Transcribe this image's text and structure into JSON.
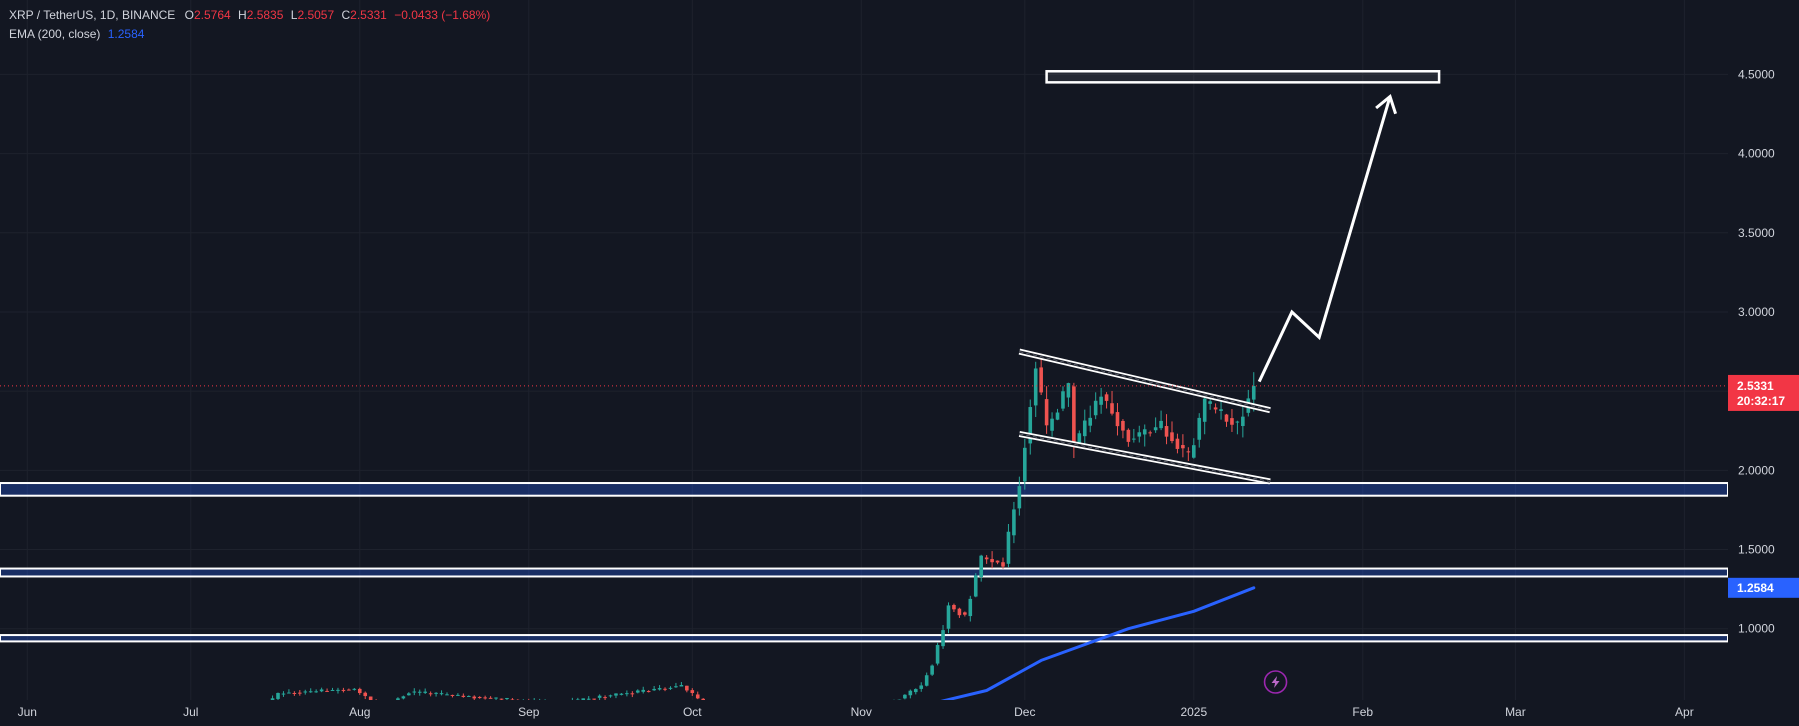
{
  "legend": {
    "symbol": "XRP / TetherUS, 1D, BINANCE",
    "o_label": "O",
    "o": "2.5764",
    "h_label": "H",
    "h": "2.5835",
    "l_label": "L",
    "l": "2.5057",
    "c_label": "C",
    "c": "2.5331",
    "change": "−0.0433 (−1.68%)",
    "ema_label": "EMA (200, close)",
    "ema_value": "1.2584"
  },
  "colors": {
    "background": "#131722",
    "grid": "#1e222d",
    "up": "#26a69a",
    "down": "#ef5350",
    "ema": "#2962ff",
    "price_tag": "#f23645",
    "drawing": "#ffffff"
  },
  "price_tag": {
    "value": "2.5331",
    "countdown": "20:32:17"
  },
  "ema_tag": {
    "value": "1.2584"
  },
  "icons": {
    "indicator": "lightning-icon"
  },
  "chart_data": {
    "type": "candlestick",
    "x_ticks": [
      {
        "date": "2024-06-01",
        "label": "Jun"
      },
      {
        "date": "2024-07-01",
        "label": "Jul"
      },
      {
        "date": "2024-08-01",
        "label": "Aug"
      },
      {
        "date": "2024-09-01",
        "label": "Sep"
      },
      {
        "date": "2024-10-01",
        "label": "Oct"
      },
      {
        "date": "2024-11-01",
        "label": "Nov"
      },
      {
        "date": "2024-12-01",
        "label": "Dec"
      },
      {
        "date": "2025-01-01",
        "label": "2025"
      },
      {
        "date": "2025-02-01",
        "label": "Feb"
      },
      {
        "date": "2025-03-01",
        "label": "Mar"
      },
      {
        "date": "2025-04-01",
        "label": "Apr"
      }
    ],
    "y_ticks": [
      {
        "value": 1.0,
        "label": "1.0000"
      },
      {
        "value": 1.5,
        "label": "1.5000"
      },
      {
        "value": 2.0,
        "label": "2.0000"
      },
      {
        "value": 2.5,
        "label": "2.5000"
      },
      {
        "value": 3.0,
        "label": "3.0000"
      },
      {
        "value": 3.5,
        "label": "3.5000"
      },
      {
        "value": 4.0,
        "label": "4.0000"
      },
      {
        "value": 4.5,
        "label": "4.5000"
      }
    ],
    "x_range": [
      "2024-05-27",
      "2025-04-09"
    ],
    "y_range": [
      0.55,
      4.97
    ],
    "close_segments": [
      {
        "from": "2024-06-01",
        "to": "2024-07-14",
        "start": 0.51,
        "end": 0.49
      },
      {
        "from": "2024-07-14",
        "to": "2024-07-17",
        "start": 0.49,
        "end": 0.59
      },
      {
        "from": "2024-07-17",
        "to": "2024-07-31",
        "start": 0.59,
        "end": 0.62
      },
      {
        "from": "2024-07-31",
        "to": "2024-08-05",
        "start": 0.62,
        "end": 0.5
      },
      {
        "from": "2024-08-05",
        "to": "2024-08-10",
        "start": 0.5,
        "end": 0.6
      },
      {
        "from": "2024-08-10",
        "to": "2024-09-06",
        "start": 0.6,
        "end": 0.53
      },
      {
        "from": "2024-09-06",
        "to": "2024-09-29",
        "start": 0.53,
        "end": 0.64
      },
      {
        "from": "2024-09-29",
        "to": "2024-10-03",
        "start": 0.64,
        "end": 0.53
      },
      {
        "from": "2024-10-03",
        "to": "2024-11-05",
        "start": 0.53,
        "end": 0.5
      },
      {
        "from": "2024-11-05",
        "to": "2024-11-12",
        "start": 0.5,
        "end": 0.64
      },
      {
        "from": "2024-11-12",
        "to": "2024-11-14",
        "start": 0.64,
        "end": 0.78
      },
      {
        "from": "2024-11-14",
        "to": "2024-11-16",
        "start": 0.78,
        "end": 1.0
      },
      {
        "from": "2024-11-16",
        "to": "2024-11-17",
        "start": 1.0,
        "end": 1.15
      },
      {
        "from": "2024-11-17",
        "to": "2024-11-20",
        "start": 1.15,
        "end": 1.08
      },
      {
        "from": "2024-11-20",
        "to": "2024-11-23",
        "start": 1.08,
        "end": 1.45
      },
      {
        "from": "2024-11-23",
        "to": "2024-11-27",
        "start": 1.45,
        "end": 1.41
      },
      {
        "from": "2024-11-27",
        "to": "2024-11-28",
        "start": 1.41,
        "end": 1.59
      },
      {
        "from": "2024-11-28",
        "to": "2024-11-30",
        "start": 1.59,
        "end": 1.93
      },
      {
        "from": "2024-11-30",
        "to": "2024-12-03",
        "start": 1.93,
        "end": 2.65
      },
      {
        "from": "2024-12-03",
        "to": "2024-12-05",
        "start": 2.65,
        "end": 2.25
      },
      {
        "from": "2024-12-05",
        "to": "2024-12-09",
        "start": 2.25,
        "end": 2.53
      },
      {
        "from": "2024-12-09",
        "to": "2024-12-10",
        "start": 2.53,
        "end": 2.15
      },
      {
        "from": "2024-12-10",
        "to": "2024-12-15",
        "start": 2.15,
        "end": 2.48
      },
      {
        "from": "2024-12-15",
        "to": "2024-12-20",
        "start": 2.48,
        "end": 2.2
      },
      {
        "from": "2024-12-20",
        "to": "2024-12-26",
        "start": 2.2,
        "end": 2.28
      },
      {
        "from": "2024-12-26",
        "to": "2024-12-31",
        "start": 2.28,
        "end": 2.08
      },
      {
        "from": "2024-12-31",
        "to": "2025-01-03",
        "start": 2.08,
        "end": 2.42
      },
      {
        "from": "2025-01-03",
        "to": "2025-01-07",
        "start": 2.42,
        "end": 2.33
      },
      {
        "from": "2025-01-07",
        "to": "2025-01-09",
        "start": 2.33,
        "end": 2.28
      },
      {
        "from": "2025-01-09",
        "to": "2025-01-12",
        "start": 2.28,
        "end": 2.53
      }
    ],
    "ema_200": [
      {
        "date": "2024-05-27",
        "value": 0.515
      },
      {
        "date": "2024-07-12",
        "value": 0.49
      },
      {
        "date": "2024-08-05",
        "value": 0.5
      },
      {
        "date": "2024-10-01",
        "value": 0.515
      },
      {
        "date": "2024-11-01",
        "value": 0.505
      },
      {
        "date": "2024-11-13",
        "value": 0.52
      },
      {
        "date": "2024-11-24",
        "value": 0.61
      },
      {
        "date": "2024-12-04",
        "value": 0.8
      },
      {
        "date": "2024-12-20",
        "value": 1.0
      },
      {
        "date": "2025-01-01",
        "value": 1.11
      },
      {
        "date": "2025-01-12",
        "value": 1.2584
      }
    ],
    "last_close": 2.5331,
    "support_zones": [
      [
        1.84,
        1.92
      ],
      [
        1.33,
        1.38
      ],
      [
        0.92,
        0.96
      ]
    ],
    "target_box": {
      "from": "2024-12-05",
      "to": "2025-02-15",
      "low": 4.45,
      "high": 4.52
    },
    "channel": {
      "upper": {
        "from": [
          "2024-11-30",
          2.75
        ],
        "to": [
          "2025-01-15",
          2.38
        ]
      },
      "lower": {
        "from": [
          "2024-11-30",
          2.23
        ],
        "to": [
          "2025-01-15",
          1.93
        ]
      }
    },
    "projection_path": [
      [
        "2025-01-13",
        2.56
      ],
      [
        "2025-01-19",
        3.0
      ],
      [
        "2025-01-24",
        2.84
      ],
      [
        "2025-02-06",
        4.36
      ]
    ],
    "grid": true
  }
}
